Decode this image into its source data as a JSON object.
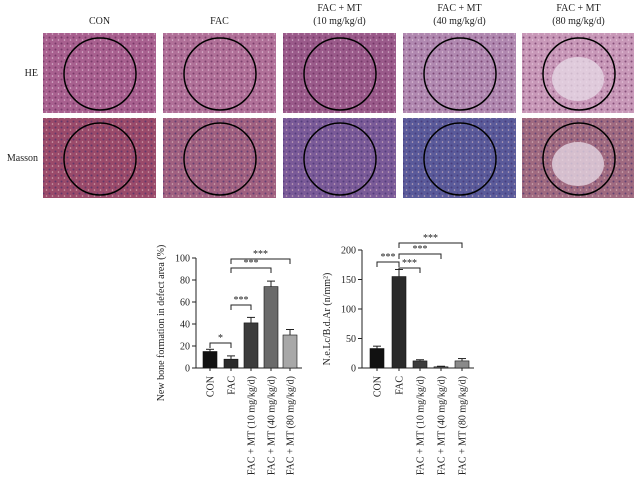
{
  "figure": {
    "column_labels": [
      [
        "CON"
      ],
      [
        "FAC"
      ],
      [
        "FAC + MT",
        "(10 mg/kg/d)"
      ],
      [
        "FAC + MT",
        "(40 mg/kg/d)"
      ],
      [
        "FAC + MT",
        "(80 mg/kg/d)"
      ]
    ],
    "row_labels": [
      "HE",
      "Masson"
    ]
  },
  "chart_data": [
    {
      "type": "bar",
      "ylabel": "New bone formation in defect area (%)",
      "categories": [
        "CON",
        "FAC",
        "FAC + MT (10 mg/kg/d)",
        "FAC + MT (40 mg/kg/d)",
        "FAC + MT (80 mg/kg/d)"
      ],
      "values": [
        15,
        8,
        41,
        74,
        30
      ],
      "errors": [
        2,
        3,
        5,
        5,
        5
      ],
      "colors": [
        "#111111",
        "#2a2a2a",
        "#3c3c3c",
        "#6a6a6a",
        "#a8a8a8"
      ],
      "ylim": [
        0,
        100
      ],
      "yticks": [
        0,
        20,
        40,
        60,
        80,
        100
      ],
      "annotations": [
        "*",
        "***",
        "***",
        "***"
      ]
    },
    {
      "type": "bar",
      "ylabel": "N.e.Lc/B.d.Ar (n/mm²)",
      "categories": [
        "CON",
        "FAC",
        "FAC + MT (10 mg/kg/d)",
        "FAC + MT (40 mg/kg/d)",
        "FAC + MT (80 mg/kg/d)"
      ],
      "values": [
        33,
        155,
        12,
        2,
        12
      ],
      "errors": [
        4,
        12,
        2,
        1,
        4
      ],
      "colors": [
        "#111111",
        "#2a2a2a",
        "#3c3c3c",
        "#6a6a6a",
        "#8a8a8a"
      ],
      "ylim": [
        0,
        200
      ],
      "yticks": [
        0,
        50,
        100,
        150,
        200
      ],
      "annotations": [
        "***",
        "***",
        "***",
        "***"
      ]
    }
  ]
}
